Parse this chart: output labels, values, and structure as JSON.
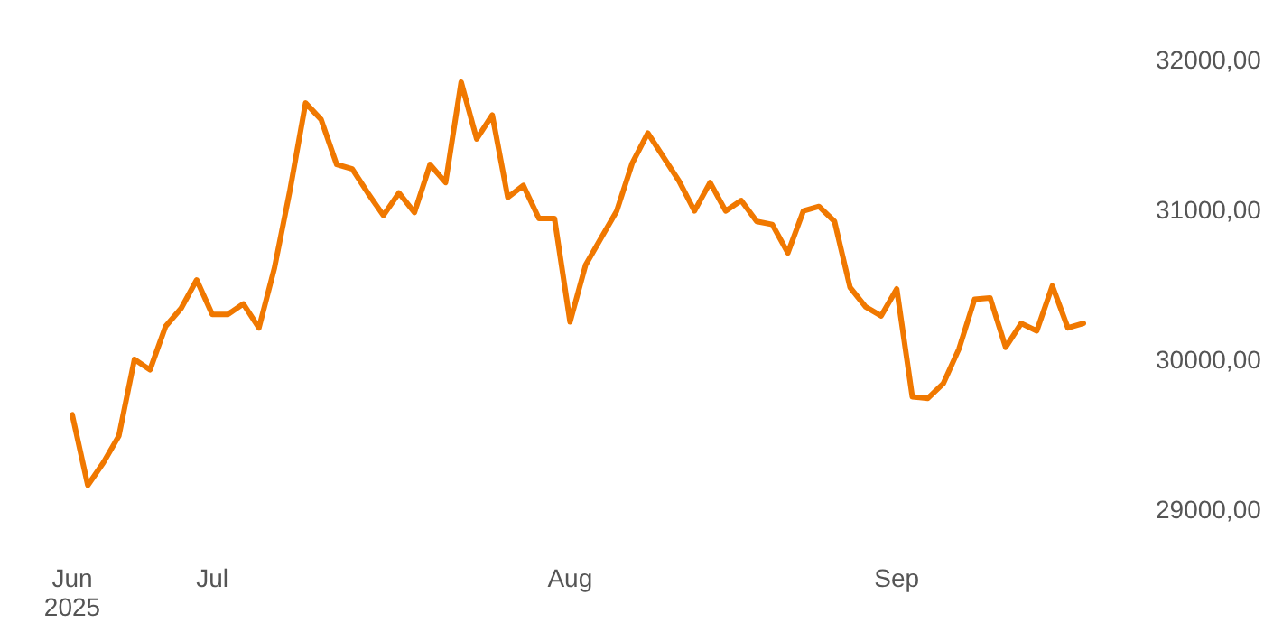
{
  "chart_data": {
    "type": "line",
    "categories": [
      "Jun 2025",
      null,
      null,
      null,
      null,
      null,
      null,
      null,
      null,
      "Jul",
      null,
      null,
      null,
      null,
      null,
      null,
      null,
      null,
      null,
      null,
      null,
      null,
      null,
      null,
      null,
      null,
      null,
      null,
      null,
      null,
      null,
      null,
      "Aug",
      null,
      null,
      null,
      null,
      null,
      null,
      null,
      null,
      null,
      null,
      null,
      null,
      null,
      null,
      null,
      null,
      null,
      null,
      null,
      null,
      "Sep",
      null,
      null,
      null,
      null,
      null,
      null,
      null,
      null,
      null,
      null,
      null,
      null
    ],
    "series": [
      {
        "color": "#f07800",
        "values": [
          29630,
          29160,
          29310,
          29490,
          30000,
          29930,
          30220,
          30340,
          30530,
          30300,
          30300,
          30370,
          30210,
          30610,
          31130,
          31710,
          31600,
          31300,
          31270,
          31110,
          30960,
          31110,
          30980,
          31300,
          31180,
          31850,
          31470,
          31630,
          31080,
          31160,
          30940,
          30940,
          30250,
          30630,
          30810,
          30990,
          31310,
          31510,
          31350,
          31190,
          30990,
          31180,
          30990,
          31060,
          30920,
          30900,
          30710,
          30990,
          31020,
          30920,
          30480,
          30350,
          30290,
          30470,
          29750,
          29740,
          29840,
          30070,
          30400,
          30410,
          30080,
          30240,
          30190,
          30490,
          30210,
          30240
        ]
      }
    ],
    "ylim": [
      29000,
      32000
    ],
    "yticks": [
      {
        "value": 29000,
        "label": "29000,00"
      },
      {
        "value": 30000,
        "label": "30000,00"
      },
      {
        "value": 31000,
        "label": "31000,00"
      },
      {
        "value": 32000,
        "label": "32000,00"
      }
    ],
    "grid": false,
    "marker": "none",
    "line_style": "solid"
  }
}
